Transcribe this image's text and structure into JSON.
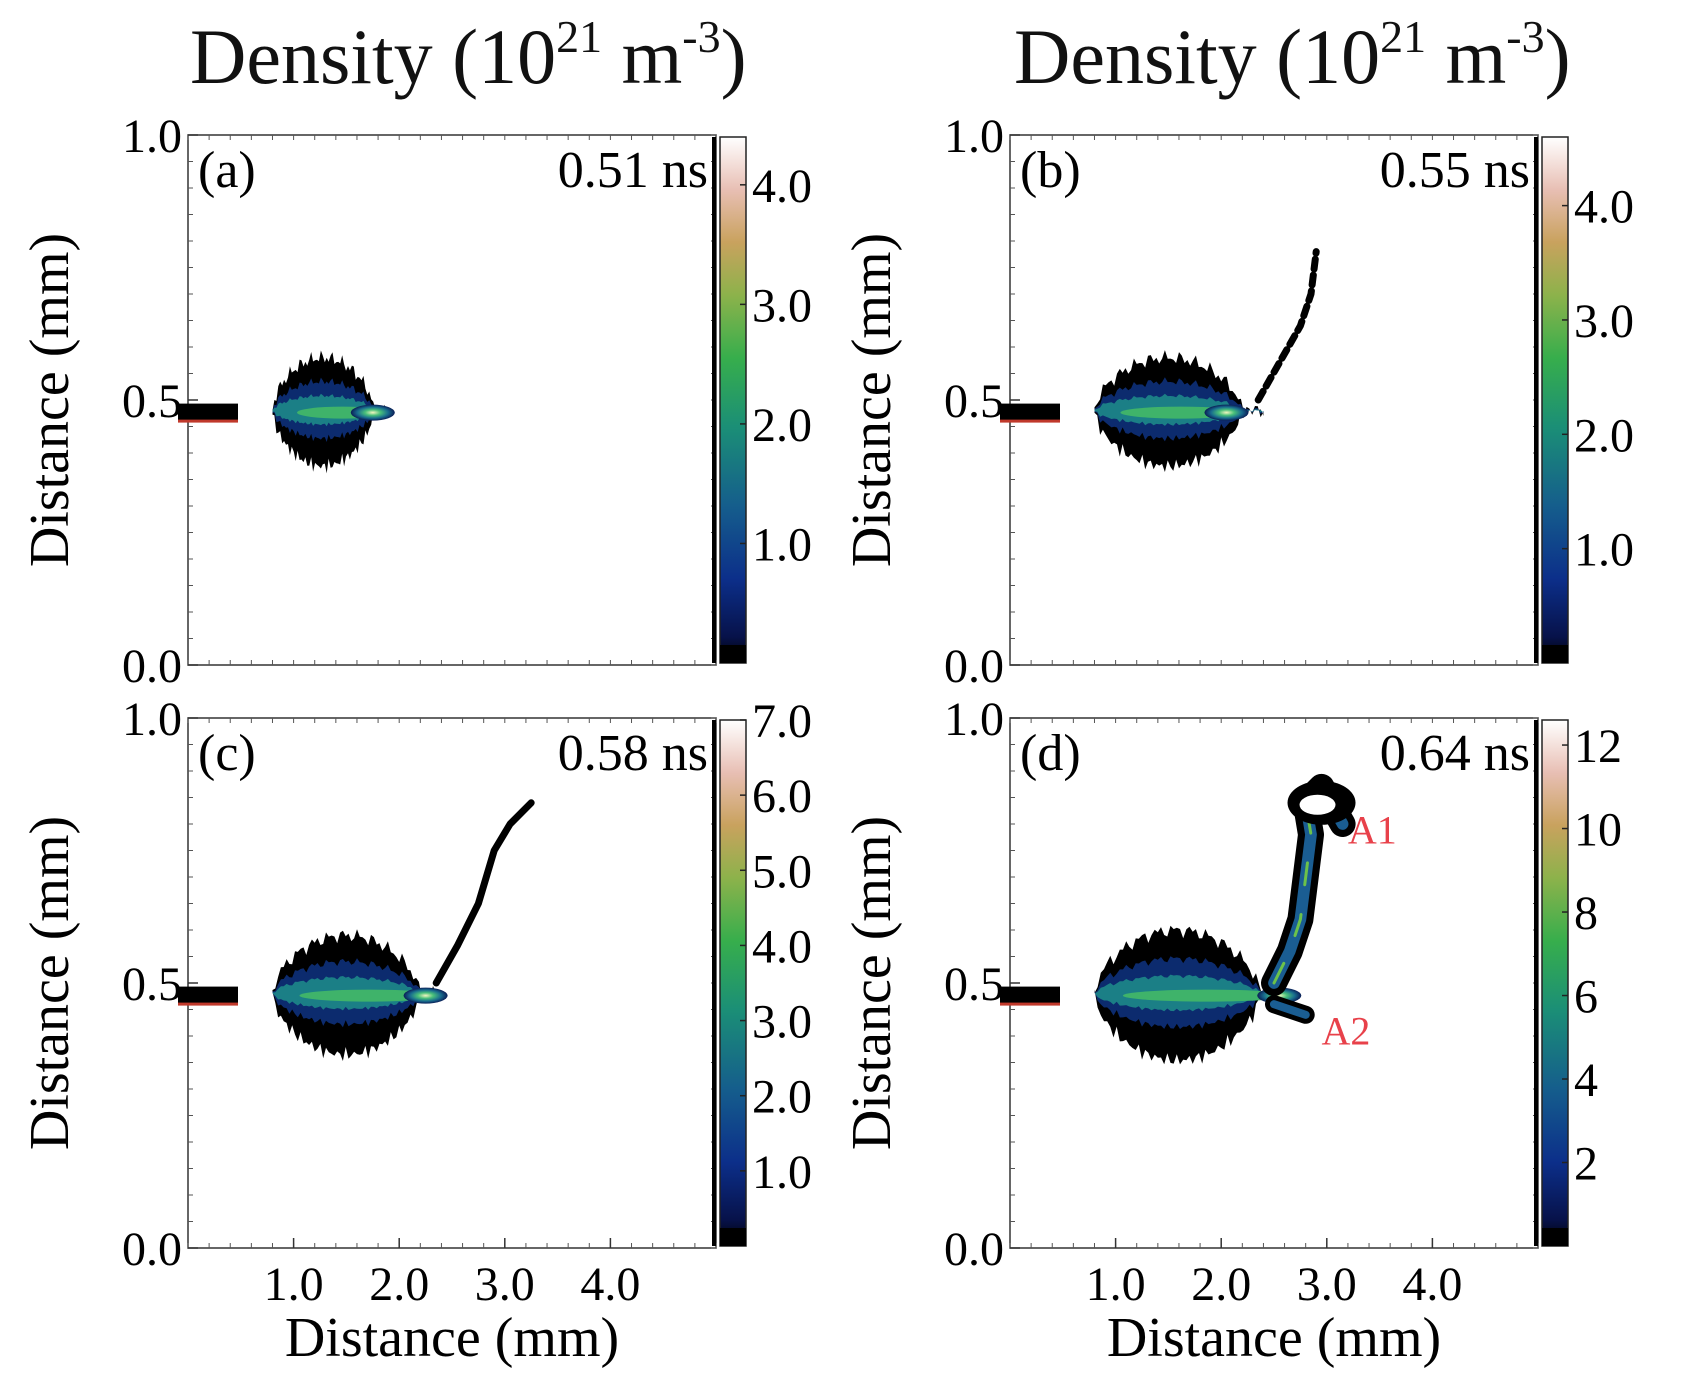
{
  "figure": {
    "column_titles": [
      {
        "prefix": "Density (10",
        "exp_power": "21",
        "mid": " m",
        "exp_unit": "-3",
        "suffix": ")"
      },
      {
        "prefix": "Density (10",
        "exp_power": "21",
        "mid": " m",
        "exp_unit": "-3",
        "suffix": ")"
      }
    ]
  },
  "chart_data": [
    {
      "type": "heatmap",
      "panel_label": "(a)",
      "time_label": "0.51 ns",
      "xlabel": "",
      "ylabel": "Distance (mm)",
      "xlim": [
        0,
        5.0
      ],
      "ylim": [
        0.0,
        1.0
      ],
      "xticks": [],
      "yticks": [
        "0.0",
        "0.5",
        "1.0"
      ],
      "colorbar": {
        "range": [
          0,
          4.4
        ],
        "tick_values": [
          1.0,
          2.0,
          3.0,
          4.0
        ],
        "tick_labels": [
          "1.0",
          "2.0",
          "3.0",
          "4.0"
        ]
      },
      "plasma": {
        "x_start": 0.8,
        "x_end": 1.9,
        "y_center": 0.48,
        "half_width_max": 0.1,
        "peak_x": 1.75
      },
      "filaments": []
    },
    {
      "type": "heatmap",
      "panel_label": "(b)",
      "time_label": "0.55 ns",
      "xlabel": "",
      "ylabel": "Distance (mm)",
      "xlim": [
        0,
        5.0
      ],
      "ylim": [
        0.0,
        1.0
      ],
      "xticks": [],
      "yticks": [
        "0.0",
        "0.5",
        "1.0"
      ],
      "colorbar": {
        "range": [
          0,
          4.6
        ],
        "tick_values": [
          1.0,
          2.0,
          3.0,
          4.0
        ],
        "tick_labels": [
          "1.0",
          "2.0",
          "3.0",
          "4.0"
        ]
      },
      "plasma": {
        "x_start": 0.8,
        "x_end": 2.4,
        "y_center": 0.48,
        "half_width_max": 0.1,
        "peak_x": 2.05
      },
      "filaments": [
        [
          [
            2.35,
            0.5
          ],
          [
            2.55,
            0.57
          ],
          [
            2.75,
            0.64
          ],
          [
            2.85,
            0.7
          ],
          [
            2.9,
            0.78
          ]
        ]
      ]
    },
    {
      "type": "heatmap",
      "panel_label": "(c)",
      "time_label": "0.58 ns",
      "xlabel": "Distance (mm)",
      "ylabel": "Distance (mm)",
      "xlim": [
        0,
        5.0
      ],
      "ylim": [
        0.0,
        1.0
      ],
      "xticks": [
        "1.0",
        "2.0",
        "3.0",
        "4.0"
      ],
      "yticks": [
        "0.0",
        "0.5",
        "1.0"
      ],
      "colorbar": {
        "range": [
          0,
          7.0
        ],
        "tick_values": [
          1.0,
          2.0,
          3.0,
          4.0,
          5.0,
          6.0,
          7.0
        ],
        "tick_labels": [
          "1.0",
          "2.0",
          "3.0",
          "4.0",
          "5.0",
          "6.0",
          "7.0"
        ]
      },
      "plasma": {
        "x_start": 0.8,
        "x_end": 2.4,
        "y_center": 0.48,
        "half_width_max": 0.11,
        "peak_x": 2.25
      },
      "filaments": [
        [
          [
            2.35,
            0.5
          ],
          [
            2.55,
            0.57
          ],
          [
            2.75,
            0.65
          ],
          [
            2.9,
            0.75
          ],
          [
            3.05,
            0.8
          ],
          [
            3.25,
            0.84
          ]
        ]
      ]
    },
    {
      "type": "heatmap",
      "panel_label": "(d)",
      "time_label": "0.64 ns",
      "xlabel": "Distance (mm)",
      "ylabel": "Distance (mm)",
      "xlim": [
        0,
        5.0
      ],
      "ylim": [
        0.0,
        1.0
      ],
      "xticks": [
        "1.0",
        "2.0",
        "3.0",
        "4.0"
      ],
      "yticks": [
        "0.0",
        "0.5",
        "1.0"
      ],
      "colorbar": {
        "range": [
          0,
          12.6
        ],
        "tick_values": [
          2,
          4,
          6,
          8,
          10,
          12
        ],
        "tick_labels": [
          "2",
          "4",
          "6",
          "8",
          "10",
          "12"
        ]
      },
      "plasma": {
        "x_start": 0.8,
        "x_end": 2.6,
        "y_center": 0.48,
        "half_width_max": 0.12,
        "peak_x": 2.55
      },
      "filaments": [
        [
          [
            2.5,
            0.5
          ],
          [
            2.65,
            0.56
          ],
          [
            2.75,
            0.62
          ],
          [
            2.8,
            0.7
          ],
          [
            2.85,
            0.78
          ],
          [
            2.8,
            0.84
          ],
          [
            2.95,
            0.87
          ],
          [
            3.15,
            0.8
          ]
        ],
        [
          [
            2.5,
            0.46
          ],
          [
            2.65,
            0.45
          ],
          [
            2.8,
            0.44
          ]
        ]
      ],
      "annotations": [
        {
          "text": "A1",
          "x": 3.2,
          "y": 0.79,
          "color": "#e8414a"
        },
        {
          "text": "A2",
          "x": 2.95,
          "y": 0.41,
          "color": "#e8414a"
        }
      ]
    }
  ]
}
